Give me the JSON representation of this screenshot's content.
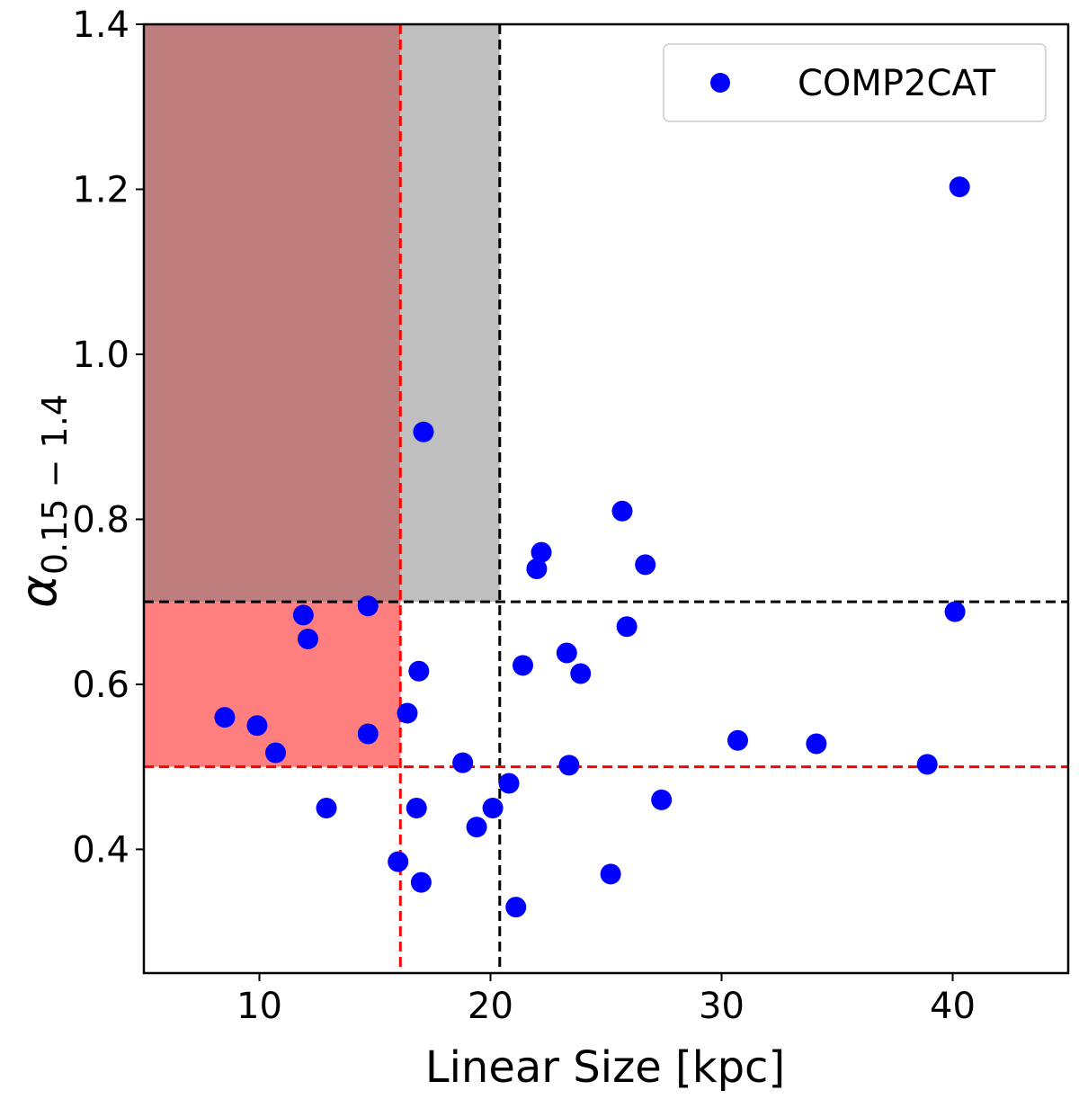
{
  "chart_data": {
    "type": "scatter",
    "xlabel": "Linear Size [kpc]",
    "ylabel_main": "α",
    "ylabel_sub": "0.15 − 1.4",
    "xlim": [
      5,
      45
    ],
    "ylim": [
      0.25,
      1.4
    ],
    "xticks": [
      10,
      20,
      30,
      40
    ],
    "yticks": [
      0.4,
      0.6,
      0.8,
      1.0,
      1.2,
      1.4
    ],
    "ytick_labels": [
      "0.4",
      "0.6",
      "0.8",
      "1.0",
      "1.2",
      "1.4"
    ],
    "grid": false,
    "legend": {
      "position": "top-right",
      "entries": [
        "COMP2CAT"
      ]
    },
    "series": [
      {
        "name": "COMP2CAT",
        "color": "#0000ff",
        "points": [
          [
            8.5,
            0.56
          ],
          [
            9.9,
            0.55
          ],
          [
            10.7,
            0.517
          ],
          [
            11.9,
            0.684
          ],
          [
            12.1,
            0.655
          ],
          [
            12.9,
            0.45
          ],
          [
            14.7,
            0.695
          ],
          [
            14.7,
            0.54
          ],
          [
            16.0,
            0.385
          ],
          [
            16.4,
            0.565
          ],
          [
            16.9,
            0.616
          ],
          [
            16.8,
            0.45
          ],
          [
            17.0,
            0.36
          ],
          [
            17.1,
            0.906
          ],
          [
            18.8,
            0.505
          ],
          [
            19.4,
            0.427
          ],
          [
            20.1,
            0.45
          ],
          [
            20.8,
            0.48
          ],
          [
            21.1,
            0.33
          ],
          [
            21.4,
            0.623
          ],
          [
            22.0,
            0.74
          ],
          [
            22.2,
            0.76
          ],
          [
            23.3,
            0.638
          ],
          [
            23.4,
            0.502
          ],
          [
            23.9,
            0.613
          ],
          [
            25.2,
            0.37
          ],
          [
            25.7,
            0.81
          ],
          [
            25.9,
            0.67
          ],
          [
            26.7,
            0.745
          ],
          [
            27.4,
            0.46
          ],
          [
            30.7,
            0.532
          ],
          [
            34.1,
            0.528
          ],
          [
            38.9,
            0.503
          ],
          [
            40.1,
            0.688
          ],
          [
            40.3,
            1.203
          ]
        ]
      }
    ],
    "reference_lines": [
      {
        "orientation": "vertical",
        "value": 16.1,
        "color": "#ff0000",
        "style": "dashed"
      },
      {
        "orientation": "vertical",
        "value": 20.4,
        "color": "#000000",
        "style": "dashed"
      },
      {
        "orientation": "horizontal",
        "value": 0.5,
        "color": "#ff0000",
        "style": "dashed"
      },
      {
        "orientation": "horizontal",
        "value": 0.7,
        "color": "#000000",
        "style": "dashed"
      }
    ],
    "shaded_regions": [
      {
        "name": "brown-region",
        "x": [
          5,
          16.1
        ],
        "y": [
          0.7,
          1.4
        ],
        "color": "#be7e7e"
      },
      {
        "name": "gray-region",
        "x": [
          16.1,
          20.4
        ],
        "y": [
          0.7,
          1.4
        ],
        "color": "#bfbfbf"
      },
      {
        "name": "red-region",
        "x": [
          5,
          16.1
        ],
        "y": [
          0.5,
          0.7
        ],
        "color": "#ff7f7f"
      }
    ]
  }
}
